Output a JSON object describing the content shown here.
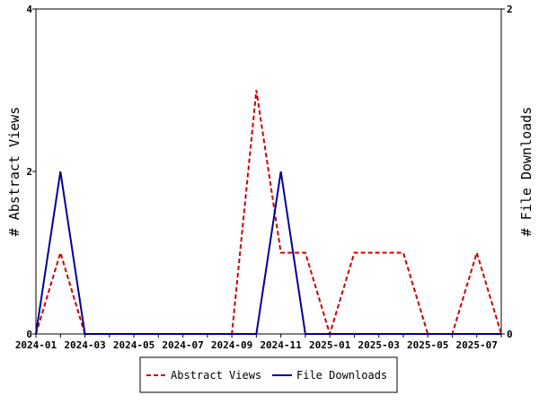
{
  "chart_data": {
    "type": "line",
    "title": "",
    "x": [
      "2024-01",
      "2024-02",
      "2024-03",
      "2024-04",
      "2024-05",
      "2024-06",
      "2024-07",
      "2024-08",
      "2024-09",
      "2024-10",
      "2024-11",
      "2024-12",
      "2025-01",
      "2025-02",
      "2025-03",
      "2025-04",
      "2025-05",
      "2025-06",
      "2025-07",
      "2025-08"
    ],
    "x_tick_labels": [
      "2024-01",
      "2024-03",
      "2024-05",
      "2024-07",
      "2024-09",
      "2024-11",
      "2025-01",
      "2025-03",
      "2025-05",
      "2025-07"
    ],
    "ylabel_left": "# Abstract Views",
    "ylabel_right": "# File Downloads",
    "ylim_left": [
      0,
      4
    ],
    "ylim_right": [
      0,
      2
    ],
    "y_ticks_left": [
      0,
      2,
      4
    ],
    "y_ticks_right": [
      0,
      2
    ],
    "grid": false,
    "legend_position": "bottom",
    "series": [
      {
        "name": "Abstract Views",
        "axis": "left",
        "color": "#cc0000",
        "dash": "dashed",
        "values": [
          0,
          1,
          0,
          0,
          0,
          0,
          0,
          0,
          0,
          3,
          1,
          1,
          0,
          1,
          1,
          1,
          0,
          0,
          1,
          0
        ]
      },
      {
        "name": "File Downloads",
        "axis": "left",
        "color": "#00009c",
        "dash": "solid",
        "values": [
          0,
          2,
          0,
          0,
          0,
          0,
          0,
          0,
          0,
          0,
          2,
          0,
          0,
          0,
          0,
          0,
          0,
          0,
          0,
          0
        ]
      }
    ]
  }
}
